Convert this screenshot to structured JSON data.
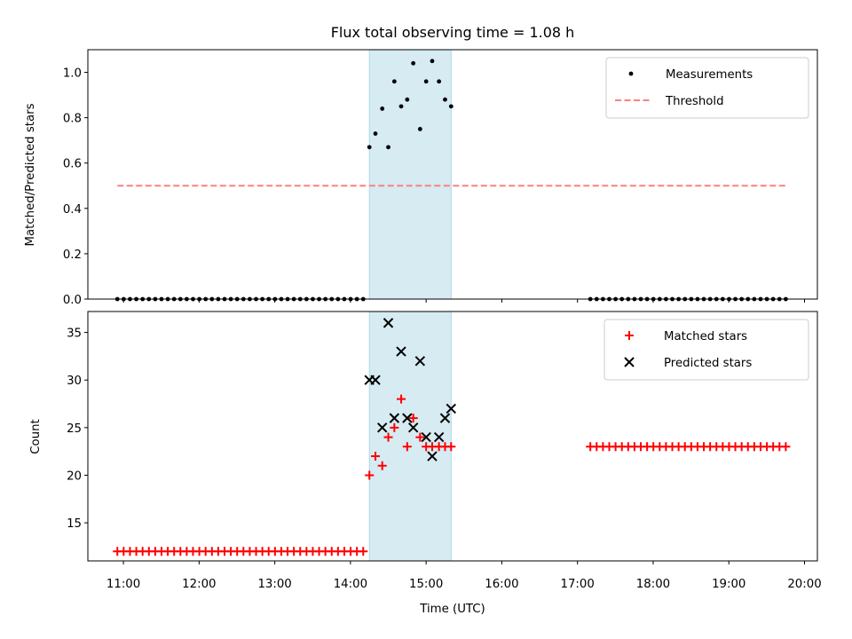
{
  "chart_data": [
    {
      "type": "scatter",
      "title": "Flux total observing time = 1.08 h",
      "xlabel": "",
      "ylabel": "Matched/Predicted stars",
      "ylim": [
        0,
        1.1
      ],
      "yticks": [
        0.0,
        0.2,
        0.4,
        0.6,
        0.8,
        1.0
      ],
      "ytick_labels": [
        "0.0",
        "0.2",
        "0.4",
        "0.6",
        "0.8",
        "1.0"
      ],
      "xlim_hours": [
        10.53,
        20.17
      ],
      "highlight_span_hours": [
        14.25,
        15.33
      ],
      "legend_position": "top-right",
      "series": [
        {
          "name": "Measurements",
          "kind": "points",
          "color": "#000000",
          "groups": [
            {
              "x_start": 10.92,
              "x_step": 0.0833,
              "count": 40,
              "y": 0.0
            },
            {
              "x_start": 17.17,
              "x_step": 0.0833,
              "count": 32,
              "y": 0.0
            }
          ],
          "points": [
            [
              14.25,
              0.67
            ],
            [
              14.33,
              0.73
            ],
            [
              14.42,
              0.84
            ],
            [
              14.5,
              0.67
            ],
            [
              14.58,
              0.96
            ],
            [
              14.67,
              0.85
            ],
            [
              14.75,
              0.88
            ],
            [
              14.83,
              1.04
            ],
            [
              14.92,
              0.75
            ],
            [
              15.0,
              0.96
            ],
            [
              15.08,
              1.05
            ],
            [
              15.17,
              0.96
            ],
            [
              15.25,
              0.88
            ],
            [
              15.33,
              0.85
            ]
          ]
        },
        {
          "name": "Threshold",
          "kind": "dashed-line",
          "color": "#ff7f7f",
          "x": [
            10.92,
            19.75
          ],
          "y": [
            0.5,
            0.5
          ]
        }
      ]
    },
    {
      "type": "scatter",
      "title": "",
      "xlabel": "Time (UTC)",
      "ylabel": "Count",
      "ylim": [
        11,
        37.2
      ],
      "yticks": [
        15,
        20,
        25,
        30,
        35
      ],
      "ytick_labels": [
        "15",
        "20",
        "25",
        "30",
        "35"
      ],
      "xlim_hours": [
        10.53,
        20.17
      ],
      "xticks_hours": [
        11,
        12,
        13,
        14,
        15,
        16,
        17,
        18,
        19,
        20
      ],
      "xtick_labels": [
        "11:00",
        "12:00",
        "13:00",
        "14:00",
        "15:00",
        "16:00",
        "17:00",
        "18:00",
        "19:00",
        "20:00"
      ],
      "highlight_span_hours": [
        14.25,
        15.33
      ],
      "legend_position": "top-right",
      "series": [
        {
          "name": "Matched stars",
          "kind": "plus",
          "color": "#ff0000",
          "groups": [
            {
              "x_start": 10.92,
              "x_step": 0.0833,
              "count": 40,
              "y": 12
            },
            {
              "x_start": 17.17,
              "x_step": 0.0833,
              "count": 32,
              "y": 23
            }
          ],
          "points": [
            [
              14.25,
              20
            ],
            [
              14.33,
              22
            ],
            [
              14.42,
              21
            ],
            [
              14.5,
              24
            ],
            [
              14.58,
              25
            ],
            [
              14.67,
              28
            ],
            [
              14.75,
              23
            ],
            [
              14.83,
              26
            ],
            [
              14.92,
              24
            ],
            [
              15.0,
              23
            ],
            [
              15.08,
              23
            ],
            [
              15.17,
              23
            ],
            [
              15.25,
              23
            ],
            [
              15.33,
              23
            ]
          ]
        },
        {
          "name": "Predicted stars",
          "kind": "x",
          "color": "#000000",
          "points": [
            [
              14.25,
              30
            ],
            [
              14.33,
              30
            ],
            [
              14.42,
              25
            ],
            [
              14.5,
              36
            ],
            [
              14.58,
              26
            ],
            [
              14.67,
              33
            ],
            [
              14.75,
              26
            ],
            [
              14.83,
              25
            ],
            [
              14.92,
              32
            ],
            [
              15.0,
              24
            ],
            [
              15.08,
              22
            ],
            [
              15.17,
              24
            ],
            [
              15.25,
              26
            ],
            [
              15.33,
              27
            ]
          ]
        }
      ]
    }
  ]
}
